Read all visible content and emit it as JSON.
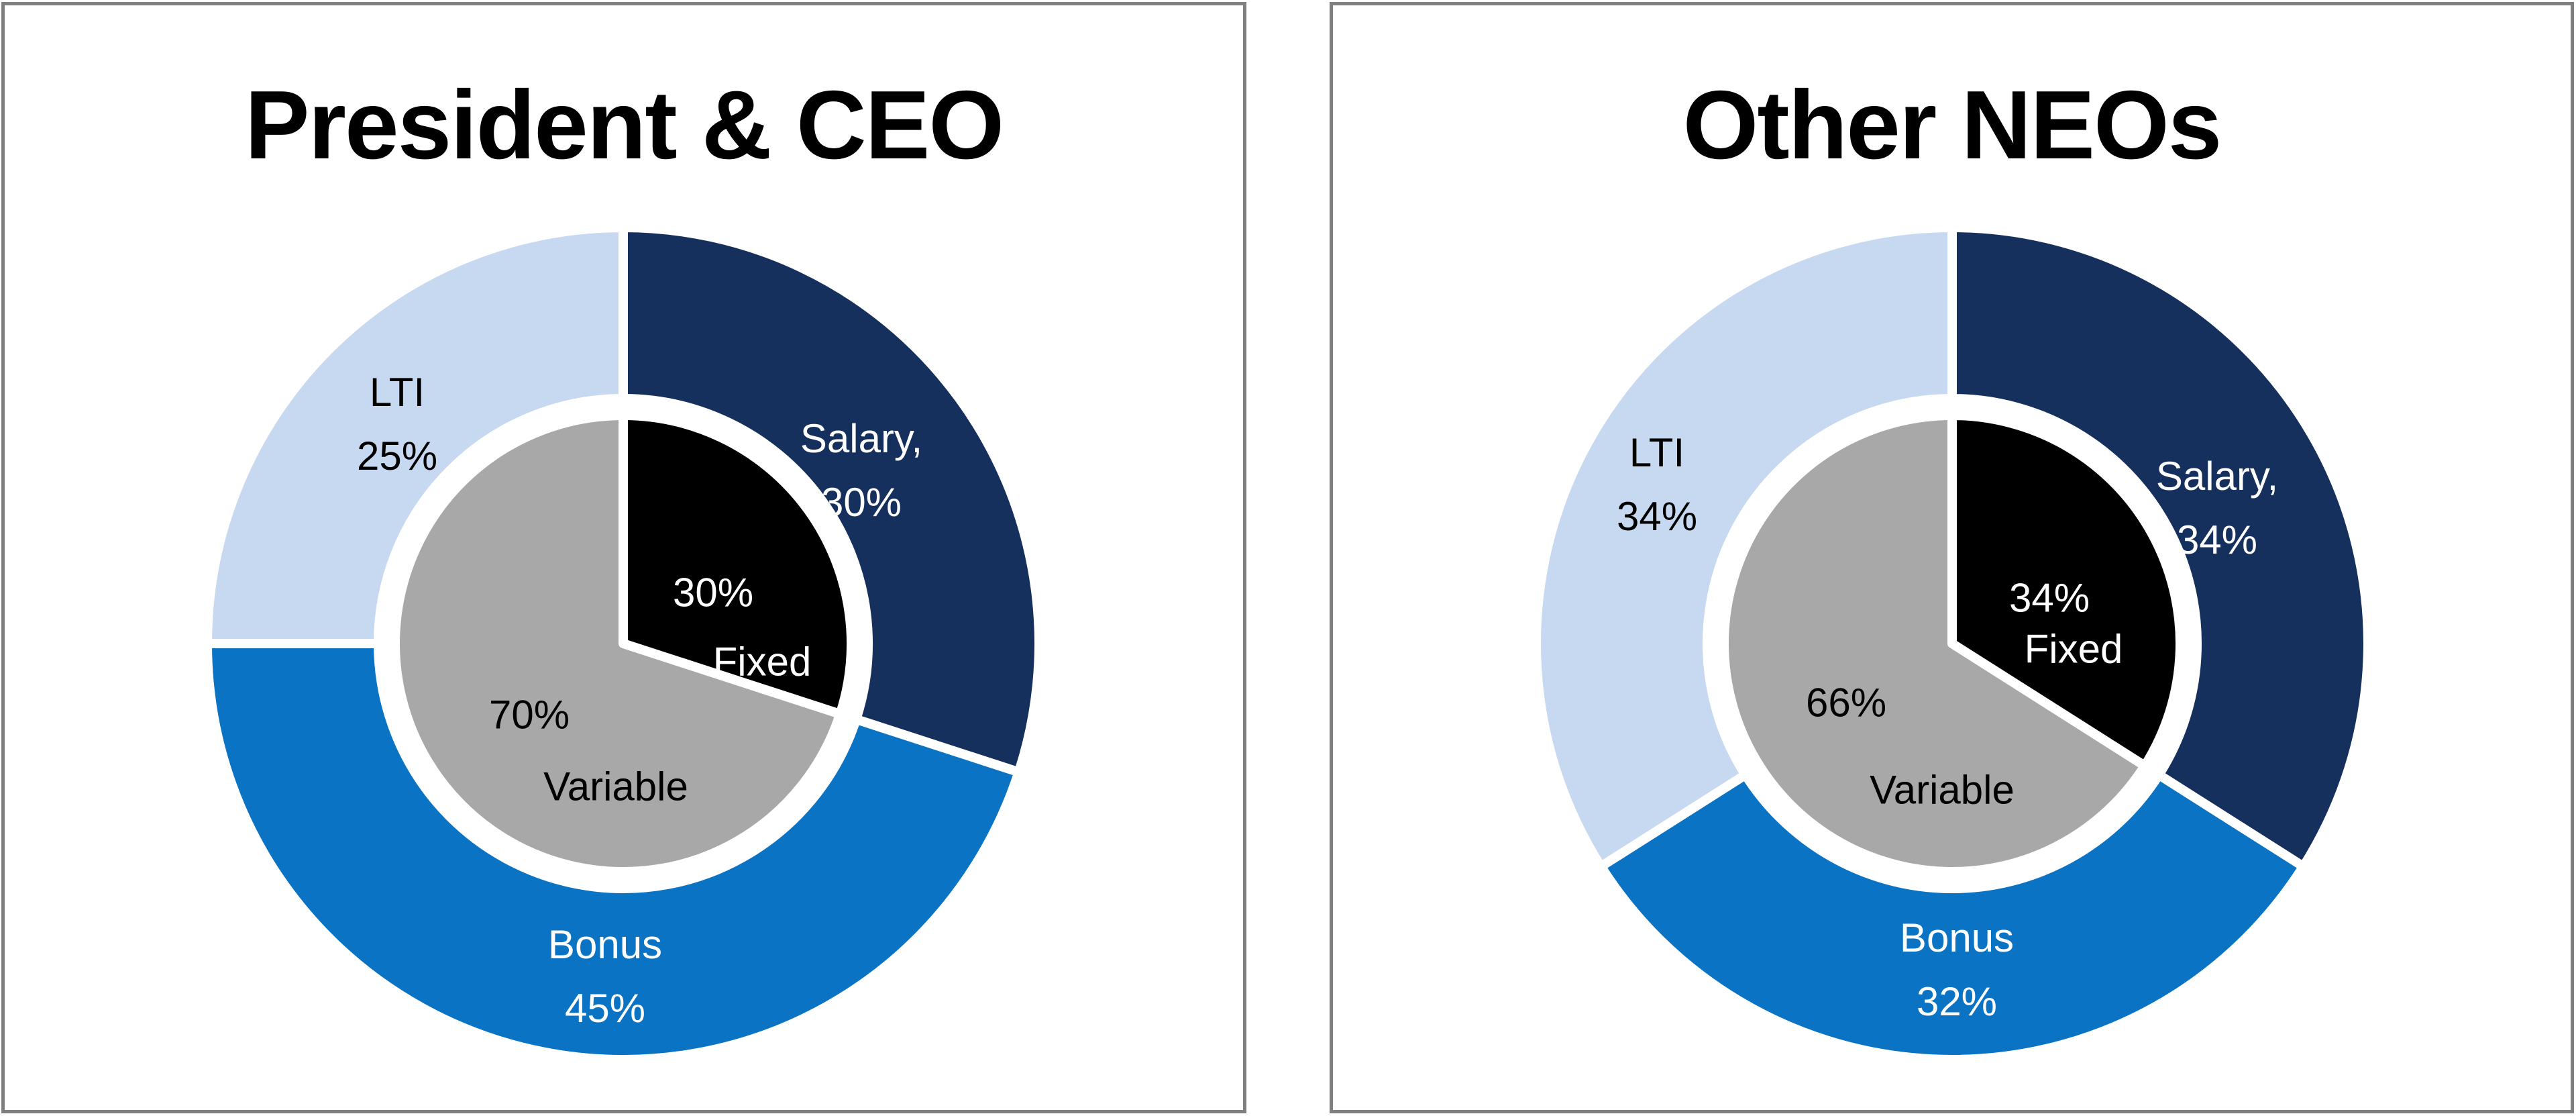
{
  "layout_colors": {
    "background": "#FFFFFF",
    "panel_border": "#7F7F7F",
    "title_color": "#000000",
    "separator_lines": "#FFFFFF"
  },
  "chart_data": [
    {
      "type": "pie",
      "variant": "donut-with-inner-pie",
      "title": "President & CEO",
      "start_angle_deg": 0,
      "direction": "clockwise",
      "legend": "none",
      "separator_color": "#FFFFFF",
      "outer": {
        "name": "pay-mix",
        "categories": [
          "Salary",
          "Bonus",
          "LTI"
        ],
        "values": [
          30,
          45,
          25
        ],
        "colors": [
          "#16305E",
          "#0B73C4",
          "#C7D9F0"
        ],
        "label_texts": [
          "Salary,\n30%",
          "Bonus\n45%",
          "LTI\n25%"
        ],
        "label_text_colors": [
          "#FFFFFF",
          "#FFFFFF",
          "#000000"
        ]
      },
      "inner": {
        "name": "fixed-vs-variable",
        "categories": [
          "Fixed",
          "Variable"
        ],
        "values": [
          30,
          70
        ],
        "colors": [
          "#000000",
          "#A8A8A8"
        ],
        "pct_labels": [
          "30%",
          "70%"
        ],
        "name_labels": [
          "Fixed",
          "Variable"
        ],
        "label_text_colors": [
          "#FFFFFF",
          "#000000"
        ]
      }
    },
    {
      "type": "pie",
      "variant": "donut-with-inner-pie",
      "title": "Other NEOs",
      "start_angle_deg": 0,
      "direction": "clockwise",
      "legend": "none",
      "separator_color": "#FFFFFF",
      "outer": {
        "name": "pay-mix",
        "categories": [
          "Salary",
          "Bonus",
          "LTI"
        ],
        "values": [
          34,
          32,
          34
        ],
        "colors": [
          "#16305E",
          "#0B73C4",
          "#C7D9F0"
        ],
        "label_texts": [
          "Salary,\n34%",
          "Bonus\n32%",
          "LTI\n34%"
        ],
        "label_text_colors": [
          "#FFFFFF",
          "#FFFFFF",
          "#000000"
        ]
      },
      "inner": {
        "name": "fixed-vs-variable",
        "categories": [
          "Fixed",
          "Variable"
        ],
        "values": [
          34,
          66
        ],
        "colors": [
          "#000000",
          "#A8A8A8"
        ],
        "pct_labels": [
          "34%",
          "66%"
        ],
        "name_labels": [
          "Fixed",
          "Variable"
        ],
        "label_text_colors": [
          "#FFFFFF",
          "#000000"
        ]
      }
    }
  ]
}
